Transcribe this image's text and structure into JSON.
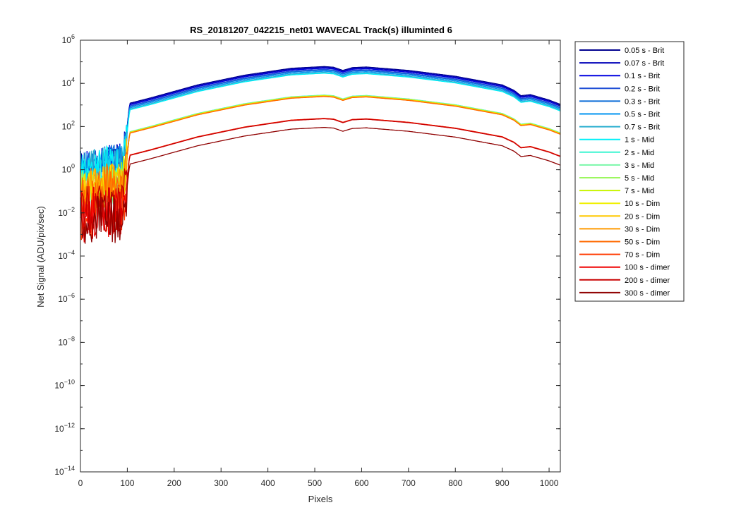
{
  "chart_data": {
    "type": "line",
    "title": "RS_20181207_042215_net01 WAVECAL  Track(s) illuminted 6",
    "xlabel": "Pixels",
    "ylabel": "Net Signal (ADU/pix/sec)",
    "xlim": [
      0,
      1024
    ],
    "ylim_exponents": [
      -14,
      6
    ],
    "yscale": "log",
    "x_ticks": [
      "0",
      "100",
      "200",
      "300",
      "400",
      "500",
      "600",
      "700",
      "800",
      "900",
      "1000"
    ],
    "x_tick_values": [
      0,
      100,
      200,
      300,
      400,
      500,
      600,
      700,
      800,
      900,
      1000
    ],
    "y_tick_exponents": [
      -14,
      -12,
      -10,
      -8,
      -6,
      -4,
      -2,
      0,
      2,
      4,
      6
    ],
    "grid": false,
    "legend_position": "outside-right",
    "profile_x": [
      0,
      90,
      100,
      105,
      150,
      250,
      350,
      450,
      520,
      540,
      560,
      580,
      610,
      700,
      800,
      900,
      925,
      940,
      960,
      1000,
      1024
    ],
    "profile_shape": [
      -2.8,
      -2.4,
      -1.0,
      0.0,
      0.25,
      0.85,
      1.3,
      1.62,
      1.7,
      1.67,
      1.52,
      1.65,
      1.68,
      1.52,
      1.25,
      0.85,
      0.6,
      0.35,
      0.4,
      0.15,
      -0.05
    ],
    "series": [
      {
        "name": "0.05 s - Brit",
        "color": "#00008f",
        "peak_log": 4.78
      },
      {
        "name": "0.07 s - Brit",
        "color": "#0000b8",
        "peak_log": 4.74
      },
      {
        "name": "0.1 s - Brit",
        "color": "#0000e0",
        "peak_log": 4.7
      },
      {
        "name": "0.2 s - Brit",
        "color": "#1f4fd6",
        "peak_log": 4.65
      },
      {
        "name": "0.3 s - Brit",
        "color": "#0a6cd8",
        "peak_log": 4.61
      },
      {
        "name": "0.5 s - Brit",
        "color": "#0094f2",
        "peak_log": 4.56
      },
      {
        "name": "0.7 s - Brit",
        "color": "#2aaecf",
        "peak_log": 4.51
      },
      {
        "name": "1 s - Mid",
        "color": "#00f0f8",
        "peak_log": 4.47
      },
      {
        "name": "2 s - Mid",
        "color": "#3cf5d0",
        "peak_log": 3.46
      },
      {
        "name": "3 s - Mid",
        "color": "#7af7a8",
        "peak_log": 3.45
      },
      {
        "name": "5 s - Mid",
        "color": "#9cf760",
        "peak_log": 3.44
      },
      {
        "name": "7 s - Mid",
        "color": "#c8f400",
        "peak_log": 3.43
      },
      {
        "name": "10 s - Dim",
        "color": "#f0f000",
        "peak_log": 3.42
      },
      {
        "name": "20 s - Dim",
        "color": "#ffc800",
        "peak_log": 3.41
      },
      {
        "name": "30 s - Dim",
        "color": "#ff9a00",
        "peak_log": 3.4
      },
      {
        "name": "50 s - Dim",
        "color": "#ff6a00",
        "peak_log": 3.39
      },
      {
        "name": "70 s - Dim",
        "color": "#ff3a00",
        "peak_log": 2.38
      },
      {
        "name": "100 s - dimer",
        "color": "#ef0000",
        "peak_log": 2.37
      },
      {
        "name": "200 s - dimer",
        "color": "#c80000",
        "peak_log": 2.36
      },
      {
        "name": "300 s - dimer",
        "color": "#8f0000",
        "peak_log": 1.96
      }
    ]
  }
}
